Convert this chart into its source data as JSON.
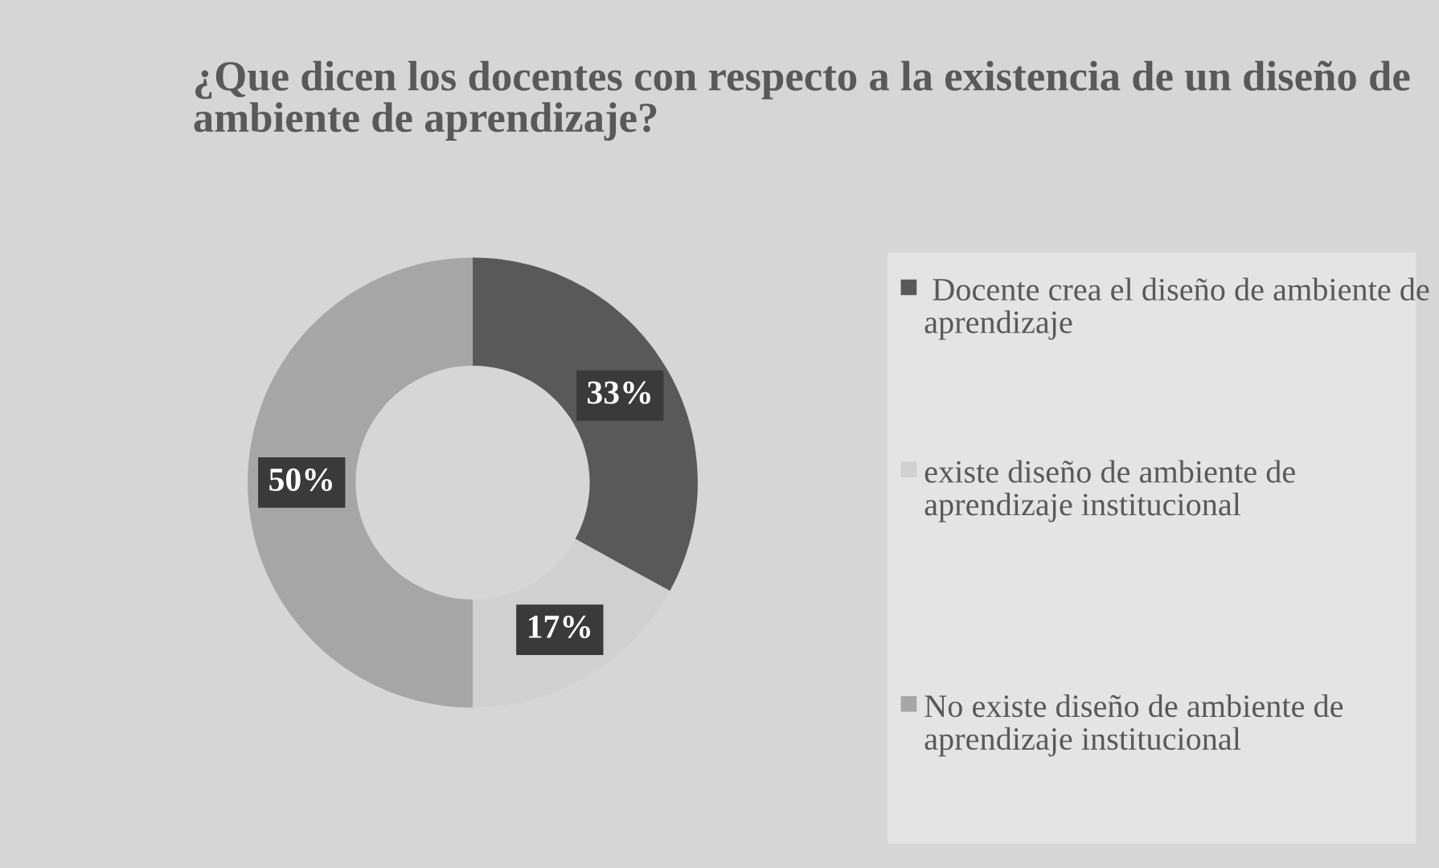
{
  "chart_data": {
    "type": "donut",
    "title": "¿Que dicen los docentes con respecto a la existencia de un diseño de ambiente de aprendizaje?",
    "categories": [
      " Docente crea el diseño de ambiente de aprendizaje",
      "existe diseño de ambiente de aprendizaje institucional",
      "No existe diseño de ambiente de aprendizaje institucional"
    ],
    "values": [
      33,
      17,
      50
    ],
    "value_labels": [
      "33%",
      "17%",
      "50%"
    ],
    "colors": [
      "#595959",
      "#d0d0d0",
      "#a6a6a6"
    ],
    "legend": "right"
  }
}
